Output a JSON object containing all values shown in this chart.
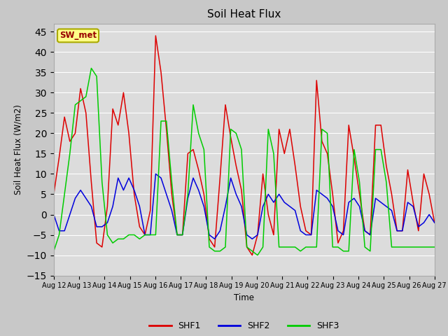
{
  "title": "Soil Heat Flux",
  "xlabel": "Time",
  "ylabel": "Soil Heat Flux (W/m2)",
  "ylim": [
    -15,
    47
  ],
  "yticks": [
    -15,
    -10,
    -5,
    0,
    5,
    10,
    15,
    20,
    25,
    30,
    35,
    40,
    45
  ],
  "figsize": [
    6.4,
    4.8
  ],
  "dpi": 100,
  "fig_bg_color": "#c8c8c8",
  "ax_bg_color": "#dcdcdc",
  "annotation_text": "SW_met",
  "annotation_bg": "#ffff88",
  "annotation_border": "#aaaa00",
  "annotation_text_color": "#990000",
  "line_colors": {
    "SHF1": "#dd0000",
    "SHF2": "#0000dd",
    "SHF3": "#00cc00"
  },
  "line_width": 1.1,
  "x_labels": [
    "Aug 12",
    "Aug 13",
    "Aug 14",
    "Aug 15",
    "Aug 16",
    "Aug 17",
    "Aug 18",
    "Aug 19",
    "Aug 20",
    "Aug 21",
    "Aug 22",
    "Aug 23",
    "Aug 24",
    "Aug 25",
    "Aug 26",
    "Aug 27"
  ],
  "shf1": [
    5,
    14,
    24,
    18,
    20,
    31,
    25,
    8,
    -7,
    -8,
    2,
    26,
    22,
    30,
    20,
    5,
    -3,
    -5,
    1,
    44,
    35,
    21,
    5,
    -5,
    -5,
    15,
    16,
    11,
    5,
    -6,
    -8,
    9,
    27,
    19,
    12,
    6,
    -8,
    -10,
    -5,
    10,
    0,
    -5,
    21,
    15,
    21,
    12,
    2,
    -4,
    -5,
    33,
    18,
    15,
    5,
    -7,
    -4,
    22,
    14,
    5,
    -4,
    -5,
    22,
    22,
    12,
    5,
    -4,
    -4,
    11,
    3,
    -4,
    10,
    5,
    -2
  ],
  "shf2": [
    0,
    -4,
    -4,
    0,
    4,
    6,
    4,
    2,
    -3,
    -3,
    -2,
    2,
    9,
    6,
    9,
    6,
    2,
    -5,
    -5,
    10,
    9,
    5,
    1,
    -5,
    -5,
    4,
    9,
    6,
    2,
    -5,
    -6,
    -4,
    2,
    9,
    5,
    2,
    -5,
    -6,
    -5,
    2,
    5,
    3,
    5,
    3,
    2,
    1,
    -4,
    -5,
    -5,
    6,
    5,
    4,
    2,
    -4,
    -5,
    3,
    4,
    2,
    -4,
    -5,
    4,
    3,
    2,
    1,
    -4,
    -4,
    3,
    2,
    -3,
    -2,
    0,
    -2
  ],
  "shf3": [
    -9,
    -5,
    5,
    15,
    27,
    28,
    29,
    36,
    34,
    8,
    -5,
    -7,
    -6,
    -6,
    -5,
    -5,
    -6,
    -5,
    -5,
    -5,
    23,
    23,
    8,
    -5,
    -5,
    5,
    27,
    20,
    16,
    -8,
    -9,
    -9,
    -8,
    21,
    20,
    16,
    -8,
    -9,
    -10,
    -8,
    21,
    15,
    -8,
    -8,
    -8,
    -8,
    -9,
    -8,
    -8,
    -8,
    21,
    20,
    -8,
    -8,
    -9,
    -9,
    16,
    8,
    -8,
    -9,
    16,
    16,
    8,
    -8,
    -8,
    -8,
    -8,
    -8,
    -8,
    -8,
    -8,
    -8
  ]
}
